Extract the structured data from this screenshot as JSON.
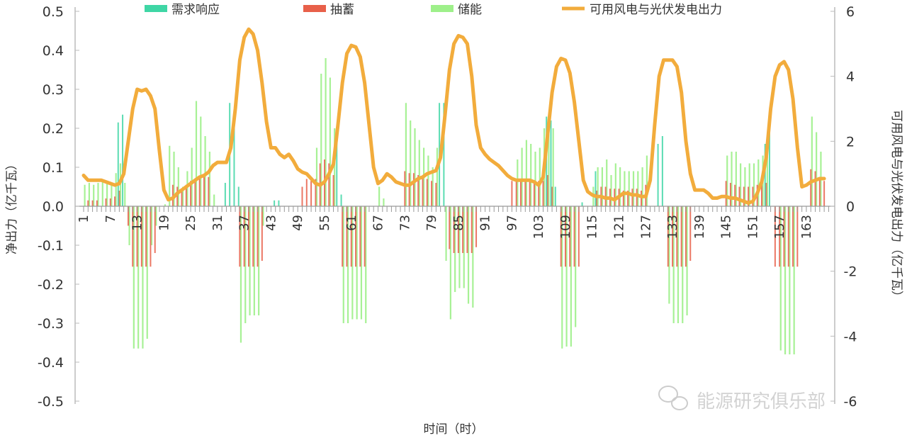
{
  "chart_data": {
    "type": "bar+line",
    "title": "",
    "xlabel": "时间（时）",
    "ylabel_left": "净出力（亿千瓦）",
    "ylabel_right": "可用风电与光伏发电出力（亿千瓦）",
    "ylim_left": [
      -0.5,
      0.5
    ],
    "ylim_right": [
      -6,
      6
    ],
    "yticks_left": [
      "0.5",
      "0.4",
      "0.3",
      "0.2",
      "0.1",
      "0.0",
      "-0.1",
      "-0.2",
      "-0.3",
      "-0.4",
      "-0.5"
    ],
    "yticks_right": [
      "6",
      "4",
      "2",
      "0",
      "-2",
      "-4",
      "-6"
    ],
    "x_range": [
      1,
      168
    ],
    "xticks": [
      "1",
      "7",
      "13",
      "19",
      "25",
      "31",
      "37",
      "43",
      "49",
      "55",
      "61",
      "67",
      "73",
      "79",
      "85",
      "91",
      "97",
      "103",
      "109",
      "115",
      "121",
      "127",
      "133",
      "139",
      "145",
      "151",
      "157",
      "163"
    ],
    "grid": false,
    "legend_position": "top",
    "legend": [
      "需求响应",
      "抽蓄",
      "储能",
      "可用风电与光伏发电出力"
    ],
    "colors": {
      "demand_response": "#3fd6a5",
      "pumped_storage": "#e8604a",
      "storage": "#9ef08a",
      "renewable": "#f2ac3c"
    },
    "bar_series": [
      {
        "name": "需求响应",
        "axis": "left",
        "points": [
          [
            9,
            0.215
          ],
          [
            10,
            0.235
          ],
          [
            33,
            0.06
          ],
          [
            34,
            0.265
          ],
          [
            35,
            0.235
          ],
          [
            36,
            0.05
          ],
          [
            44,
            0.015
          ],
          [
            45,
            0.015
          ],
          [
            58,
            0.17
          ],
          [
            59,
            0.03
          ],
          [
            81,
            0.265
          ],
          [
            82,
            0.265
          ],
          [
            105,
            0.23
          ],
          [
            106,
            0.22
          ],
          [
            107,
            0.05
          ],
          [
            113,
            0.01
          ],
          [
            116,
            0.09
          ],
          [
            130,
            0.16
          ],
          [
            131,
            0.18
          ],
          [
            154,
            0.16
          ],
          [
            155,
            0.19
          ]
        ]
      },
      {
        "name": "抽蓄",
        "axis": "left",
        "points": [
          [
            2,
            0.015
          ],
          [
            3,
            0.015
          ],
          [
            4,
            0.015
          ],
          [
            6,
            0.02
          ],
          [
            7,
            0.02
          ],
          [
            8,
            0.025
          ],
          [
            9,
            0.04
          ],
          [
            11,
            -0.05
          ],
          [
            12,
            -0.155
          ],
          [
            13,
            -0.155
          ],
          [
            14,
            -0.155
          ],
          [
            15,
            -0.155
          ],
          [
            16,
            -0.155
          ],
          [
            17,
            -0.12
          ],
          [
            21,
            0.055
          ],
          [
            22,
            0.05
          ],
          [
            23,
            0.04
          ],
          [
            24,
            0.055
          ],
          [
            25,
            0.065
          ],
          [
            26,
            0.07
          ],
          [
            27,
            0.075
          ],
          [
            28,
            0.075
          ],
          [
            29,
            0.075
          ],
          [
            36,
            -0.155
          ],
          [
            37,
            -0.155
          ],
          [
            38,
            -0.155
          ],
          [
            39,
            -0.155
          ],
          [
            40,
            -0.155
          ],
          [
            41,
            -0.14
          ],
          [
            50,
            0.05
          ],
          [
            51,
            0.07
          ],
          [
            52,
            0.065
          ],
          [
            53,
            0.07
          ],
          [
            54,
            0.11
          ],
          [
            55,
            0.12
          ],
          [
            56,
            0.11
          ],
          [
            57,
            0.08
          ],
          [
            59,
            -0.155
          ],
          [
            60,
            -0.155
          ],
          [
            61,
            -0.155
          ],
          [
            62,
            -0.155
          ],
          [
            63,
            -0.155
          ],
          [
            64,
            -0.155
          ],
          [
            73,
            0.09
          ],
          [
            74,
            0.085
          ],
          [
            75,
            0.085
          ],
          [
            76,
            0.08
          ],
          [
            77,
            0.075
          ],
          [
            78,
            0.07
          ],
          [
            79,
            0.065
          ],
          [
            80,
            0.06
          ],
          [
            83,
            -0.11
          ],
          [
            84,
            -0.12
          ],
          [
            85,
            -0.12
          ],
          [
            86,
            -0.12
          ],
          [
            87,
            -0.12
          ],
          [
            88,
            -0.12
          ],
          [
            89,
            -0.105
          ],
          [
            97,
            0.065
          ],
          [
            98,
            0.07
          ],
          [
            99,
            0.065
          ],
          [
            100,
            0.065
          ],
          [
            101,
            0.065
          ],
          [
            102,
            0.065
          ],
          [
            103,
            0.065
          ],
          [
            104,
            0.065
          ],
          [
            105,
            0.08
          ],
          [
            106,
            0.05
          ],
          [
            108,
            -0.155
          ],
          [
            109,
            -0.155
          ],
          [
            110,
            -0.155
          ],
          [
            111,
            -0.155
          ],
          [
            112,
            -0.155
          ],
          [
            116,
            0.04
          ],
          [
            117,
            0.05
          ],
          [
            118,
            0.05
          ],
          [
            119,
            0.045
          ],
          [
            120,
            0.045
          ],
          [
            121,
            0.045
          ],
          [
            122,
            0.04
          ],
          [
            123,
            0.04
          ],
          [
            124,
            0.045
          ],
          [
            125,
            0.045
          ],
          [
            126,
            0.04
          ],
          [
            127,
            0.055
          ],
          [
            132,
            -0.155
          ],
          [
            133,
            -0.155
          ],
          [
            134,
            -0.155
          ],
          [
            135,
            -0.155
          ],
          [
            136,
            -0.155
          ],
          [
            137,
            -0.14
          ],
          [
            145,
            0.065
          ],
          [
            146,
            0.06
          ],
          [
            147,
            0.055
          ],
          [
            148,
            0.05
          ],
          [
            149,
            0.05
          ],
          [
            150,
            0.05
          ],
          [
            151,
            0.05
          ],
          [
            152,
            0.055
          ],
          [
            153,
            0.055
          ],
          [
            154,
            0.06
          ],
          [
            156,
            -0.155
          ],
          [
            157,
            -0.155
          ],
          [
            158,
            -0.155
          ],
          [
            159,
            -0.155
          ],
          [
            160,
            -0.155
          ],
          [
            161,
            -0.155
          ],
          [
            164,
            0.095
          ],
          [
            165,
            0.09
          ],
          [
            166,
            0.075
          ],
          [
            167,
            0.065
          ]
        ]
      },
      {
        "name": "储能",
        "axis": "left",
        "points": [
          [
            1,
            0.055
          ],
          [
            2,
            0.06
          ],
          [
            3,
            0.055
          ],
          [
            4,
            0.06
          ],
          [
            5,
            0.065
          ],
          [
            6,
            0.065
          ],
          [
            7,
            0.06
          ],
          [
            8,
            0.085
          ],
          [
            9,
            0.11
          ],
          [
            10,
            0.06
          ],
          [
            11,
            -0.1
          ],
          [
            12,
            -0.365
          ],
          [
            13,
            -0.365
          ],
          [
            14,
            -0.365
          ],
          [
            15,
            -0.34
          ],
          [
            16,
            -0.1
          ],
          [
            17,
            -0.05
          ],
          [
            19,
            0.005
          ],
          [
            20,
            0.155
          ],
          [
            21,
            0.14
          ],
          [
            22,
            0.1
          ],
          [
            23,
            0.05
          ],
          [
            24,
            0.09
          ],
          [
            25,
            0.15
          ],
          [
            26,
            0.27
          ],
          [
            27,
            0.23
          ],
          [
            28,
            0.18
          ],
          [
            29,
            0.14
          ],
          [
            30,
            0.03
          ],
          [
            36,
            -0.35
          ],
          [
            37,
            -0.3
          ],
          [
            38,
            -0.28
          ],
          [
            39,
            -0.28
          ],
          [
            40,
            -0.28
          ],
          [
            41,
            -0.05
          ],
          [
            53,
            0.15
          ],
          [
            54,
            0.34
          ],
          [
            55,
            0.38
          ],
          [
            56,
            0.33
          ],
          [
            57,
            0.2
          ],
          [
            59,
            -0.3
          ],
          [
            60,
            -0.3
          ],
          [
            61,
            -0.29
          ],
          [
            62,
            -0.29
          ],
          [
            63,
            -0.29
          ],
          [
            64,
            -0.3
          ],
          [
            67,
            0.05
          ],
          [
            68,
            0.02
          ],
          [
            73,
            0.265
          ],
          [
            74,
            0.22
          ],
          [
            75,
            0.2
          ],
          [
            76,
            0.17
          ],
          [
            77,
            0.15
          ],
          [
            78,
            0.13
          ],
          [
            79,
            0.1
          ],
          [
            80,
            0.15
          ],
          [
            82,
            -0.14
          ],
          [
            83,
            -0.29
          ],
          [
            84,
            -0.22
          ],
          [
            85,
            -0.21
          ],
          [
            86,
            -0.21
          ],
          [
            87,
            -0.25
          ],
          [
            88,
            -0.26
          ],
          [
            98,
            0.12
          ],
          [
            99,
            0.15
          ],
          [
            100,
            0.17
          ],
          [
            101,
            0.16
          ],
          [
            102,
            0.14
          ],
          [
            103,
            0.15
          ],
          [
            104,
            0.2
          ],
          [
            105,
            0.22
          ],
          [
            106,
            0.2
          ],
          [
            108,
            -0.365
          ],
          [
            109,
            -0.36
          ],
          [
            110,
            -0.36
          ],
          [
            111,
            -0.31
          ],
          [
            115,
            0.05
          ],
          [
            116,
            0.1
          ],
          [
            117,
            0.1
          ],
          [
            118,
            0.12
          ],
          [
            119,
            0.08
          ],
          [
            120,
            0.11
          ],
          [
            121,
            0.1
          ],
          [
            122,
            0.09
          ],
          [
            123,
            0.09
          ],
          [
            124,
            0.09
          ],
          [
            125,
            0.09
          ],
          [
            126,
            0.1
          ],
          [
            127,
            0.13
          ],
          [
            132,
            -0.25
          ],
          [
            133,
            -0.3
          ],
          [
            134,
            -0.3
          ],
          [
            135,
            -0.3
          ],
          [
            136,
            -0.28
          ],
          [
            145,
            0.13
          ],
          [
            146,
            0.14
          ],
          [
            147,
            0.14
          ],
          [
            148,
            0.11
          ],
          [
            149,
            0.1
          ],
          [
            150,
            0.11
          ],
          [
            151,
            0.11
          ],
          [
            152,
            0.12
          ],
          [
            153,
            0.13
          ],
          [
            154,
            0.14
          ],
          [
            157,
            -0.37
          ],
          [
            158,
            -0.38
          ],
          [
            159,
            -0.38
          ],
          [
            160,
            -0.38
          ],
          [
            164,
            0.23
          ],
          [
            165,
            0.19
          ],
          [
            166,
            0.14
          ]
        ]
      }
    ],
    "line_series": {
      "name": "可用风电与光伏发电出力",
      "axis": "right",
      "x_start": 1,
      "values": [
        0.95,
        0.8,
        0.8,
        0.8,
        0.8,
        0.75,
        0.7,
        0.65,
        0.7,
        1.0,
        2.0,
        3.0,
        3.6,
        3.55,
        3.6,
        3.4,
        3.0,
        1.7,
        0.5,
        0.2,
        0.25,
        0.4,
        0.5,
        0.6,
        0.7,
        0.8,
        0.9,
        0.95,
        1.05,
        1.25,
        1.35,
        1.35,
        1.35,
        1.8,
        3.0,
        4.5,
        5.2,
        5.45,
        5.3,
        4.8,
        3.8,
        2.6,
        1.8,
        1.8,
        1.6,
        1.5,
        1.6,
        1.4,
        1.15,
        1.05,
        1.0,
        0.85,
        0.7,
        0.65,
        0.75,
        1.0,
        1.3,
        2.5,
        3.8,
        4.7,
        4.95,
        4.9,
        4.6,
        3.8,
        2.5,
        1.2,
        0.7,
        0.8,
        1.0,
        0.9,
        0.75,
        0.7,
        0.65,
        0.65,
        0.75,
        0.85,
        0.9,
        1.0,
        1.05,
        1.1,
        1.5,
        2.8,
        4.2,
        5.0,
        5.25,
        5.2,
        5.0,
        4.0,
        2.5,
        1.8,
        1.6,
        1.45,
        1.35,
        1.25,
        1.1,
        0.95,
        0.85,
        0.8,
        0.8,
        0.8,
        0.8,
        0.75,
        0.65,
        0.9,
        2.2,
        3.5,
        4.3,
        4.55,
        4.5,
        4.1,
        3.2,
        2.0,
        0.8,
        0.45,
        0.35,
        0.3,
        0.3,
        0.25,
        0.25,
        0.2,
        0.3,
        0.4,
        0.4,
        0.35,
        0.35,
        0.3,
        0.3,
        0.8,
        2.5,
        4.0,
        4.5,
        4.5,
        4.5,
        4.3,
        3.5,
        2.0,
        1.0,
        0.5,
        0.5,
        0.5,
        0.4,
        0.25,
        0.25,
        0.3,
        0.3,
        0.25,
        0.25,
        0.2,
        0.15,
        0.1,
        0.15,
        0.4,
        0.75,
        1.5,
        3.0,
        4.0,
        4.35,
        4.45,
        4.2,
        3.3,
        1.8,
        0.6,
        0.65,
        0.75,
        0.8,
        0.85,
        0.85
      ]
    }
  },
  "watermark": "能源研究俱乐部"
}
